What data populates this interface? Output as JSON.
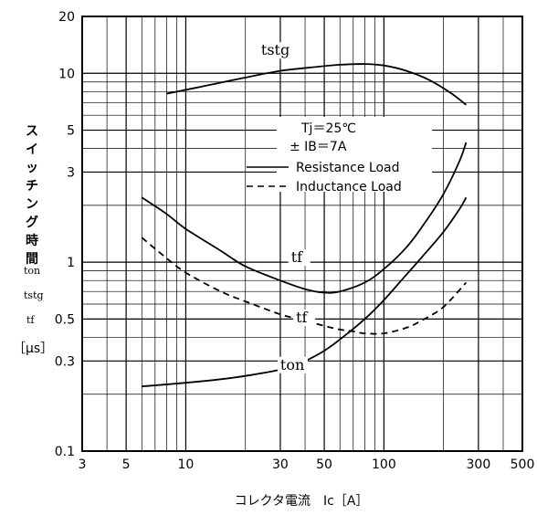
{
  "chart_data": {
    "type": "line",
    "xlabel": "コレクタ電流　Ic［A］",
    "ylabel": [
      "ス",
      "イ",
      "ッ",
      "チ",
      "ン",
      "グ",
      "時",
      "間"
    ],
    "ylabel_symbols": [
      "ton",
      "tstg",
      "tf"
    ],
    "ylabel_unit": "［μs］",
    "x_scale": "log",
    "y_scale": "log",
    "xlim": [
      3,
      500
    ],
    "ylim": [
      0.1,
      20
    ],
    "x_ticks": [
      {
        "value": 3,
        "label": "3"
      },
      {
        "value": 5,
        "label": "5"
      },
      {
        "value": 10,
        "label": "10"
      },
      {
        "value": 30,
        "label": "30"
      },
      {
        "value": 50,
        "label": "50"
      },
      {
        "value": 100,
        "label": "100"
      },
      {
        "value": 300,
        "label": "300"
      },
      {
        "value": 500,
        "label": "500"
      }
    ],
    "y_ticks": [
      {
        "value": 0.1,
        "label": "0.1"
      },
      {
        "value": 0.3,
        "label": "0.3"
      },
      {
        "value": 0.5,
        "label": "0.5"
      },
      {
        "value": 1,
        "label": "1"
      },
      {
        "value": 3,
        "label": "3"
      },
      {
        "value": 5,
        "label": "5"
      },
      {
        "value": 10,
        "label": "10"
      },
      {
        "value": 20,
        "label": "20"
      }
    ],
    "grid": true,
    "conditions": [
      "Tj＝25℃",
      "± IB＝7A"
    ],
    "legend": [
      {
        "label": "Resistance Load",
        "style": "solid"
      },
      {
        "label": "Inductance Load",
        "style": "dashed"
      }
    ],
    "series": [
      {
        "label": "tstg",
        "style": "solid",
        "x": [
          8,
          12,
          20,
          30,
          45,
          60,
          80,
          100,
          130,
          170,
          220,
          260
        ],
        "y": [
          7.8,
          8.5,
          9.5,
          10.3,
          10.8,
          11.1,
          11.2,
          11.0,
          10.3,
          9.2,
          7.8,
          6.8
        ]
      },
      {
        "label": "tf",
        "style": "solid",
        "x": [
          6,
          8,
          10,
          15,
          20,
          30,
          40,
          50,
          60,
          80,
          100,
          130,
          160,
          200,
          240,
          260
        ],
        "y": [
          2.2,
          1.8,
          1.5,
          1.15,
          0.95,
          0.8,
          0.72,
          0.69,
          0.7,
          0.78,
          0.92,
          1.2,
          1.6,
          2.3,
          3.4,
          4.3
        ]
      },
      {
        "label": "tf",
        "style": "dashed",
        "x": [
          6,
          8,
          10,
          15,
          20,
          30,
          40,
          50,
          60,
          70,
          80,
          100,
          130,
          160,
          200,
          260
        ],
        "y": [
          1.35,
          1.05,
          0.88,
          0.7,
          0.62,
          0.53,
          0.49,
          0.46,
          0.44,
          0.43,
          0.42,
          0.42,
          0.45,
          0.5,
          0.58,
          0.78
        ]
      },
      {
        "label": "ton",
        "style": "solid",
        "x": [
          6,
          10,
          15,
          20,
          30,
          40,
          50,
          60,
          80,
          100,
          130,
          160,
          200,
          240,
          260
        ],
        "y": [
          0.22,
          0.23,
          0.24,
          0.25,
          0.27,
          0.3,
          0.34,
          0.39,
          0.5,
          0.63,
          0.86,
          1.1,
          1.45,
          1.9,
          2.2
        ]
      }
    ],
    "curve_labels": [
      {
        "text": "tstg",
        "x": 24,
        "y": 12.5
      },
      {
        "text": "tf",
        "x": 34,
        "y": 1.0
      },
      {
        "text": "tf",
        "x": 36,
        "y": 0.48
      },
      {
        "text": "ton",
        "x": 30,
        "y": 0.27
      }
    ]
  }
}
